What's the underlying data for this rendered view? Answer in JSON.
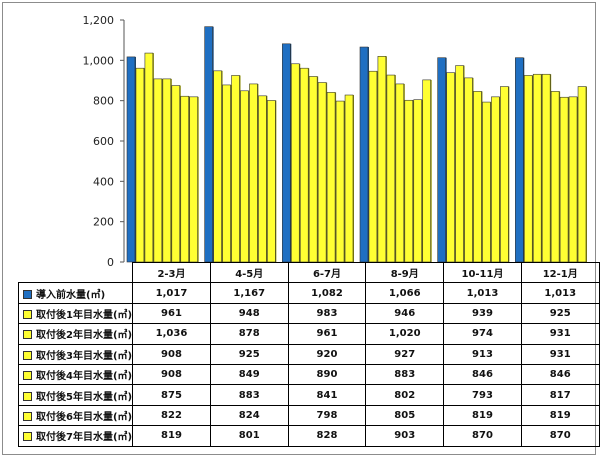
{
  "chart_data": {
    "type": "bar",
    "categories": [
      "2-3月",
      "4-5月",
      "6-7月",
      "8-9月",
      "10-11月",
      "12-1月"
    ],
    "series": [
      {
        "name": "導入前水量(㎥)",
        "color": "#1f6fc2",
        "values": [
          1017,
          1167,
          1082,
          1066,
          1013,
          1013
        ]
      },
      {
        "name": "取付後1年目水量(㎥)",
        "color": "#ffff33",
        "values": [
          961,
          948,
          983,
          946,
          939,
          925
        ]
      },
      {
        "name": "取付後2年目水量(㎥)",
        "color": "#ffff33",
        "values": [
          1036,
          878,
          961,
          1020,
          974,
          931
        ]
      },
      {
        "name": "取付後3年目水量(㎥)",
        "color": "#ffff33",
        "values": [
          908,
          925,
          920,
          927,
          913,
          931
        ]
      },
      {
        "name": "取付後4年目水量(㎥)",
        "color": "#ffff33",
        "values": [
          908,
          849,
          890,
          883,
          846,
          846
        ]
      },
      {
        "name": "取付後5年目水量(㎥)",
        "color": "#ffff33",
        "values": [
          875,
          883,
          841,
          802,
          793,
          817
        ]
      },
      {
        "name": "取付後6年目水量(㎥)",
        "color": "#ffff33",
        "values": [
          822,
          824,
          798,
          805,
          819,
          819
        ]
      },
      {
        "name": "取付後7年目水量(㎥)",
        "color": "#ffff33",
        "values": [
          819,
          801,
          828,
          903,
          870,
          870
        ]
      }
    ],
    "y_ticks": [
      "0",
      "200",
      "400",
      "600",
      "800",
      "1,000",
      "1,200"
    ],
    "ylim": [
      0,
      1200
    ],
    "grid": false,
    "legend": "data-table"
  }
}
